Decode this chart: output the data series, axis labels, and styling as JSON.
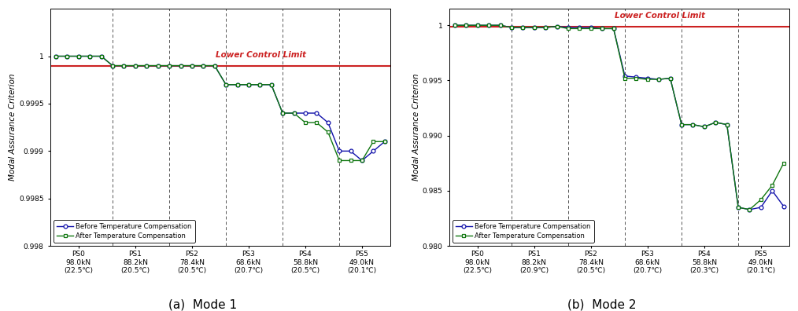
{
  "x_labels": [
    "PS0\n98.0kN\n(22.5℃)",
    "PS1\n88.2kN\n(20.5℃)",
    "PS2\n78.4kN\n(20.5℃)",
    "PS3\n68.6kN\n(20.7℃)",
    "PS4\n58.8kN\n(20.5℃)",
    "PS5\n49.0kN\n(20.1℃)"
  ],
  "x_labels2": [
    "PS0\n98.0kN\n(22.5℃)",
    "PS1\n88.2kN\n(20.9℃)",
    "PS2\n78.4kN\n(20.5℃)",
    "PS3\n68.6kN\n(20.7℃)",
    "PS4\n58.8kN\n(20.3℃)",
    "PS5\n49.0kN\n(20.1℃)"
  ],
  "mode1_before": [
    1.0,
    1.0,
    1.0,
    1.0,
    1.0,
    0.9999,
    0.9999,
    0.9999,
    0.9999,
    0.9999,
    0.9999,
    0.9999,
    0.9999,
    0.9999,
    0.9999,
    0.9997,
    0.9997,
    0.9997,
    0.9997,
    0.9997,
    0.9994,
    0.9994,
    0.9994,
    0.9994,
    0.9993,
    0.999,
    0.999,
    0.9989,
    0.999,
    0.9991
  ],
  "mode1_after": [
    1.0,
    1.0,
    1.0,
    1.0,
    1.0,
    0.9999,
    0.9999,
    0.9999,
    0.9999,
    0.9999,
    0.9999,
    0.9999,
    0.9999,
    0.9999,
    0.9999,
    0.9997,
    0.9997,
    0.9997,
    0.9997,
    0.9997,
    0.9994,
    0.9994,
    0.9993,
    0.9993,
    0.9992,
    0.9989,
    0.9989,
    0.9989,
    0.9991,
    0.9991
  ],
  "mode2_before": [
    1.0,
    1.0,
    1.0,
    1.0,
    1.0,
    0.9998,
    0.9998,
    0.9998,
    0.9998,
    0.9999,
    0.9998,
    0.9998,
    0.9998,
    0.9997,
    0.9997,
    0.9954,
    0.9953,
    0.9952,
    0.9951,
    0.9952,
    0.991,
    0.991,
    0.9908,
    0.9912,
    0.991,
    0.9835,
    0.9833,
    0.9835,
    0.985,
    0.9836
  ],
  "mode2_after": [
    1.0,
    1.0,
    1.0,
    1.0,
    1.0,
    0.9998,
    0.9998,
    0.9998,
    0.9998,
    0.9999,
    0.9997,
    0.9997,
    0.9997,
    0.9997,
    0.9997,
    0.9952,
    0.9952,
    0.9951,
    0.9951,
    0.9952,
    0.991,
    0.991,
    0.9908,
    0.9912,
    0.991,
    0.9835,
    0.9833,
    0.9842,
    0.9855,
    0.9875
  ],
  "n_per_seg": 5,
  "n_segs": 6,
  "lower_control_limit1": 0.9999,
  "lower_control_limit2": 0.9999,
  "color_before": "#1111aa",
  "color_after": "#117711",
  "color_lcl": "#cc2222",
  "ylim1": [
    0.998,
    1.0005
  ],
  "ylim2": [
    0.98,
    1.0015
  ],
  "yticks1": [
    0.998,
    0.9985,
    0.999,
    0.9995,
    1.0
  ],
  "yticks2": [
    0.98,
    0.985,
    0.99,
    0.995,
    1.0
  ],
  "ylabel": "Modal Assurance Criterion",
  "legend_before": "Before Temperature Compensation",
  "legend_after": "After Temperature Compensation",
  "lcl_label": "Lower Control Limit",
  "caption1": "(a)  Mode 1",
  "caption2": "(b)  Mode 2",
  "background_color": "#ffffff"
}
